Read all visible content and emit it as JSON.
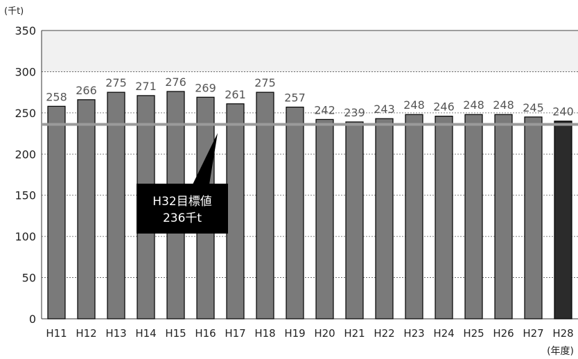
{
  "chart_data": {
    "type": "bar",
    "y_unit_label": "(千t)",
    "x_unit_label": "(年度)",
    "categories": [
      "H11",
      "H12",
      "H13",
      "H14",
      "H15",
      "H16",
      "H17",
      "H18",
      "H19",
      "H20",
      "H21",
      "H22",
      "H23",
      "H24",
      "H25",
      "H26",
      "H27",
      "H28"
    ],
    "values": [
      258,
      266,
      275,
      271,
      276,
      269,
      261,
      275,
      257,
      242,
      239,
      243,
      248,
      246,
      248,
      248,
      245,
      240
    ],
    "ylim": [
      0,
      350
    ],
    "yticks": [
      0,
      50,
      100,
      150,
      200,
      250,
      300,
      350
    ],
    "grid": true,
    "bar_color": "#7a7a7a",
    "highlight_bar_color": "#2b2b2b",
    "highlight_category": "H28",
    "target": {
      "value": 236,
      "label_line1": "H32目標値",
      "label_line2": "236千t",
      "line_color": "#9a9a9a"
    }
  }
}
